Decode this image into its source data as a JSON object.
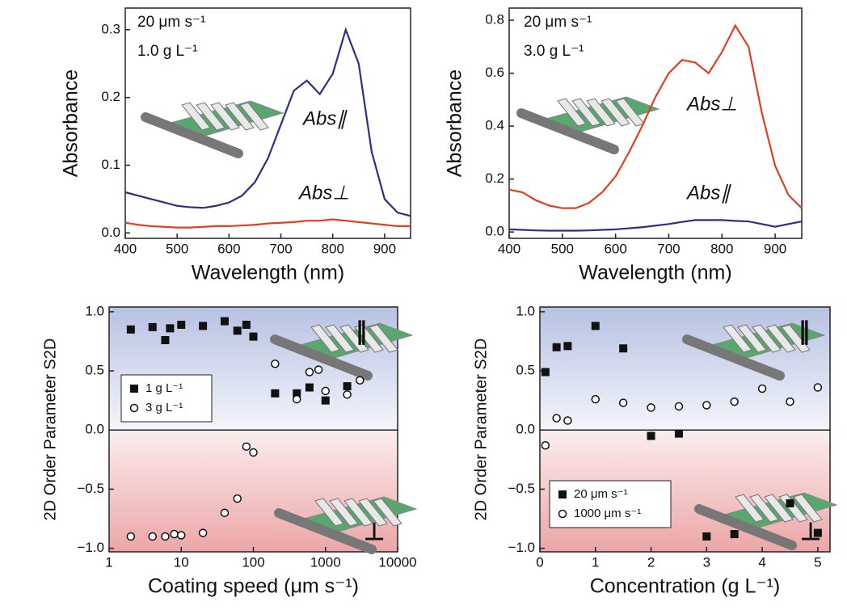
{
  "chart_data": [
    {
      "type": "line",
      "xlabel": "Wavelength (nm)",
      "ylabel": "Absorbance",
      "annotations": [
        "20 μm s⁻¹",
        "1.0 g L⁻¹"
      ],
      "x": [
        400,
        425,
        450,
        475,
        500,
        525,
        550,
        575,
        600,
        625,
        650,
        675,
        700,
        725,
        750,
        775,
        800,
        825,
        850,
        875,
        900,
        925,
        950
      ],
      "series": [
        {
          "name": "Abs∥",
          "color": "#2b2f86",
          "values": [
            0.06,
            0.055,
            0.05,
            0.045,
            0.04,
            0.038,
            0.037,
            0.04,
            0.045,
            0.055,
            0.075,
            0.11,
            0.16,
            0.21,
            0.225,
            0.205,
            0.235,
            0.3,
            0.25,
            0.12,
            0.05,
            0.03,
            0.025
          ]
        },
        {
          "name": "Abs⊥",
          "color": "#e0401c",
          "values": [
            0.015,
            0.012,
            0.01,
            0.009,
            0.008,
            0.008,
            0.009,
            0.01,
            0.01,
            0.011,
            0.012,
            0.014,
            0.015,
            0.016,
            0.018,
            0.018,
            0.02,
            0.018,
            0.016,
            0.014,
            0.012,
            0.01,
            0.01
          ]
        }
      ],
      "xlim": [
        400,
        950
      ],
      "xticks": [
        400,
        500,
        600,
        700,
        800,
        900
      ],
      "ylim": [
        -0.008,
        0.332
      ],
      "yticks": [
        {
          "value": 0,
          "label": "0.0"
        },
        0.1,
        0.2,
        0.3
      ]
    },
    {
      "type": "line",
      "xlabel": "Wavelength (nm)",
      "ylabel": "Absorbance",
      "annotations": [
        "20 μm s⁻¹",
        "3.0 g L⁻¹"
      ],
      "x": [
        400,
        425,
        450,
        475,
        500,
        525,
        550,
        575,
        600,
        625,
        650,
        675,
        700,
        725,
        750,
        775,
        800,
        825,
        850,
        875,
        900,
        925,
        950
      ],
      "series": [
        {
          "name": "Abs⊥",
          "color": "#e0401c",
          "values": [
            0.16,
            0.15,
            0.12,
            0.1,
            0.09,
            0.09,
            0.11,
            0.15,
            0.21,
            0.3,
            0.4,
            0.51,
            0.6,
            0.65,
            0.64,
            0.6,
            0.68,
            0.78,
            0.7,
            0.45,
            0.25,
            0.14,
            0.09
          ]
        },
        {
          "name": "Abs∥",
          "color": "#2b2f86",
          "values": [
            0.01,
            0.008,
            0.006,
            0.005,
            0.005,
            0.005,
            0.006,
            0.008,
            0.01,
            0.014,
            0.018,
            0.024,
            0.03,
            0.038,
            0.045,
            0.045,
            0.045,
            0.042,
            0.04,
            0.03,
            0.02,
            0.03,
            0.04
          ]
        }
      ],
      "xlim": [
        400,
        950
      ],
      "xticks": [
        400,
        500,
        600,
        700,
        800,
        900
      ],
      "ylim": [
        -0.024,
        0.846
      ],
      "yticks": [
        {
          "value": 0,
          "label": "0.0"
        },
        0.2,
        0.4,
        0.6,
        0.8
      ]
    },
    {
      "type": "scatter",
      "xlabel": "Coating speed (μm s⁻¹)",
      "ylabel": "2D Order Parameter S2D",
      "annotations": [
        "∥",
        "⊥"
      ],
      "xscale": "log",
      "legend": "left",
      "series": [
        {
          "name": "1 g L⁻¹",
          "marker": "square",
          "color": "#111",
          "x": [
            2,
            4,
            6,
            7,
            10,
            20,
            40,
            60,
            80,
            100,
            200,
            400,
            600,
            1000,
            2000
          ],
          "values": [
            0.85,
            0.87,
            0.76,
            0.86,
            0.89,
            0.88,
            0.92,
            0.84,
            0.89,
            0.79,
            0.31,
            0.31,
            0.36,
            0.25,
            0.37
          ]
        },
        {
          "name": "3 g L⁻¹",
          "marker": "circle",
          "color": "#111",
          "x": [
            2,
            4,
            6,
            8,
            10,
            20,
            40,
            60,
            80,
            100,
            200,
            400,
            600,
            800,
            1000,
            2000,
            3000
          ],
          "values": [
            -0.9,
            -0.9,
            -0.9,
            -0.88,
            -0.89,
            -0.87,
            -0.7,
            -0.58,
            -0.14,
            -0.19,
            0.56,
            0.26,
            0.49,
            0.51,
            0.33,
            0.3,
            0.42
          ]
        }
      ],
      "xlim": [
        1,
        10000
      ],
      "xticks": [
        1,
        10,
        100,
        1000,
        10000
      ],
      "ylim": [
        -1.03,
        1.04
      ],
      "yticks": [
        {
          "value": -1,
          "label": "−1.0"
        },
        {
          "value": -0.5,
          "label": "−0.5"
        },
        {
          "value": 0,
          "label": "0.0"
        },
        0.5,
        {
          "value": 1,
          "label": "1.0"
        }
      ]
    },
    {
      "type": "scatter",
      "xlabel": "Concentration  (g L⁻¹)",
      "ylabel": "2D Order Parameter S2D",
      "annotations": [
        "∥",
        "⊥"
      ],
      "legend": "lower left",
      "series": [
        {
          "name": "20 μm s⁻¹",
          "marker": "square",
          "color": "#111",
          "x": [
            0.1,
            0.3,
            0.5,
            1,
            1.5,
            2,
            2.5,
            3,
            3.5,
            4.5,
            5
          ],
          "values": [
            0.49,
            0.7,
            0.71,
            0.88,
            0.69,
            -0.05,
            -0.03,
            -0.9,
            -0.88,
            -0.62,
            -0.87
          ]
        },
        {
          "name": "1000 μm s⁻¹",
          "marker": "circle",
          "color": "#111",
          "x": [
            0.1,
            0.3,
            0.5,
            1,
            1.5,
            2,
            2.5,
            3,
            3.5,
            4,
            4.5,
            5
          ],
          "values": [
            -0.13,
            0.1,
            0.08,
            0.26,
            0.23,
            0.19,
            0.2,
            0.21,
            0.24,
            0.35,
            0.24,
            0.36
          ]
        }
      ],
      "xlim": [
        0,
        5.22
      ],
      "xticks": [
        0,
        1,
        2,
        3,
        4,
        5
      ],
      "ylim": [
        -1.03,
        1.04
      ],
      "yticks": [
        {
          "value": -1,
          "label": "−1.0"
        },
        {
          "value": -0.5,
          "label": "−0.5"
        },
        {
          "value": 0,
          "label": "0.0"
        },
        0.5,
        {
          "value": 1,
          "label": "1.0"
        }
      ]
    }
  ]
}
